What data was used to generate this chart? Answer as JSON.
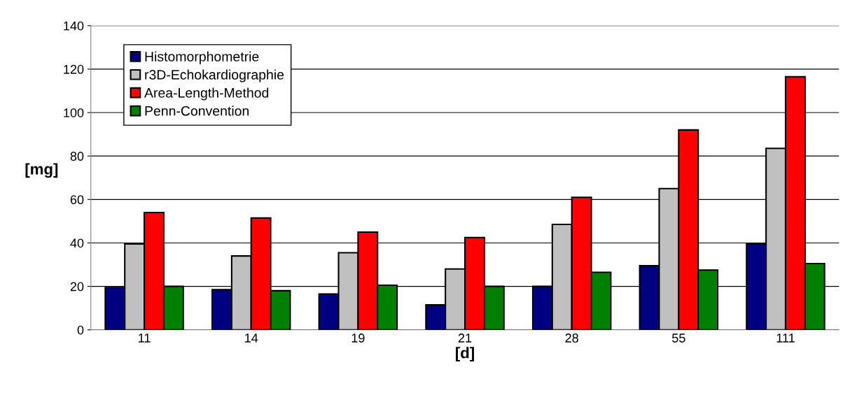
{
  "chart_data": {
    "type": "bar",
    "xlabel": "[d]",
    "ylabel": "[mg]",
    "categories": [
      "11",
      "14",
      "19",
      "21",
      "28",
      "55",
      "111"
    ],
    "series": [
      {
        "name": "Histomorphometrie",
        "color": "#000080",
        "values": [
          19.5,
          18.5,
          16.5,
          11.5,
          20,
          29.5,
          39.5
        ]
      },
      {
        "name": "r3D-Echokardiographie",
        "color": "#c0c0c0",
        "values": [
          39.5,
          34,
          35.5,
          28,
          48.5,
          65,
          83.5
        ]
      },
      {
        "name": "Area-Length-Method",
        "color": "#ff0000",
        "values": [
          54,
          51.5,
          45,
          42.5,
          61,
          92,
          116.5
        ]
      },
      {
        "name": "Penn-Convention",
        "color": "#008000",
        "values": [
          20,
          18,
          20.5,
          20,
          26.5,
          27.5,
          30.5
        ]
      }
    ],
    "ylim": [
      0,
      140
    ],
    "yticks": [
      0,
      20,
      40,
      60,
      80,
      100,
      120,
      140
    ],
    "grid": "y",
    "legend": "top left"
  }
}
